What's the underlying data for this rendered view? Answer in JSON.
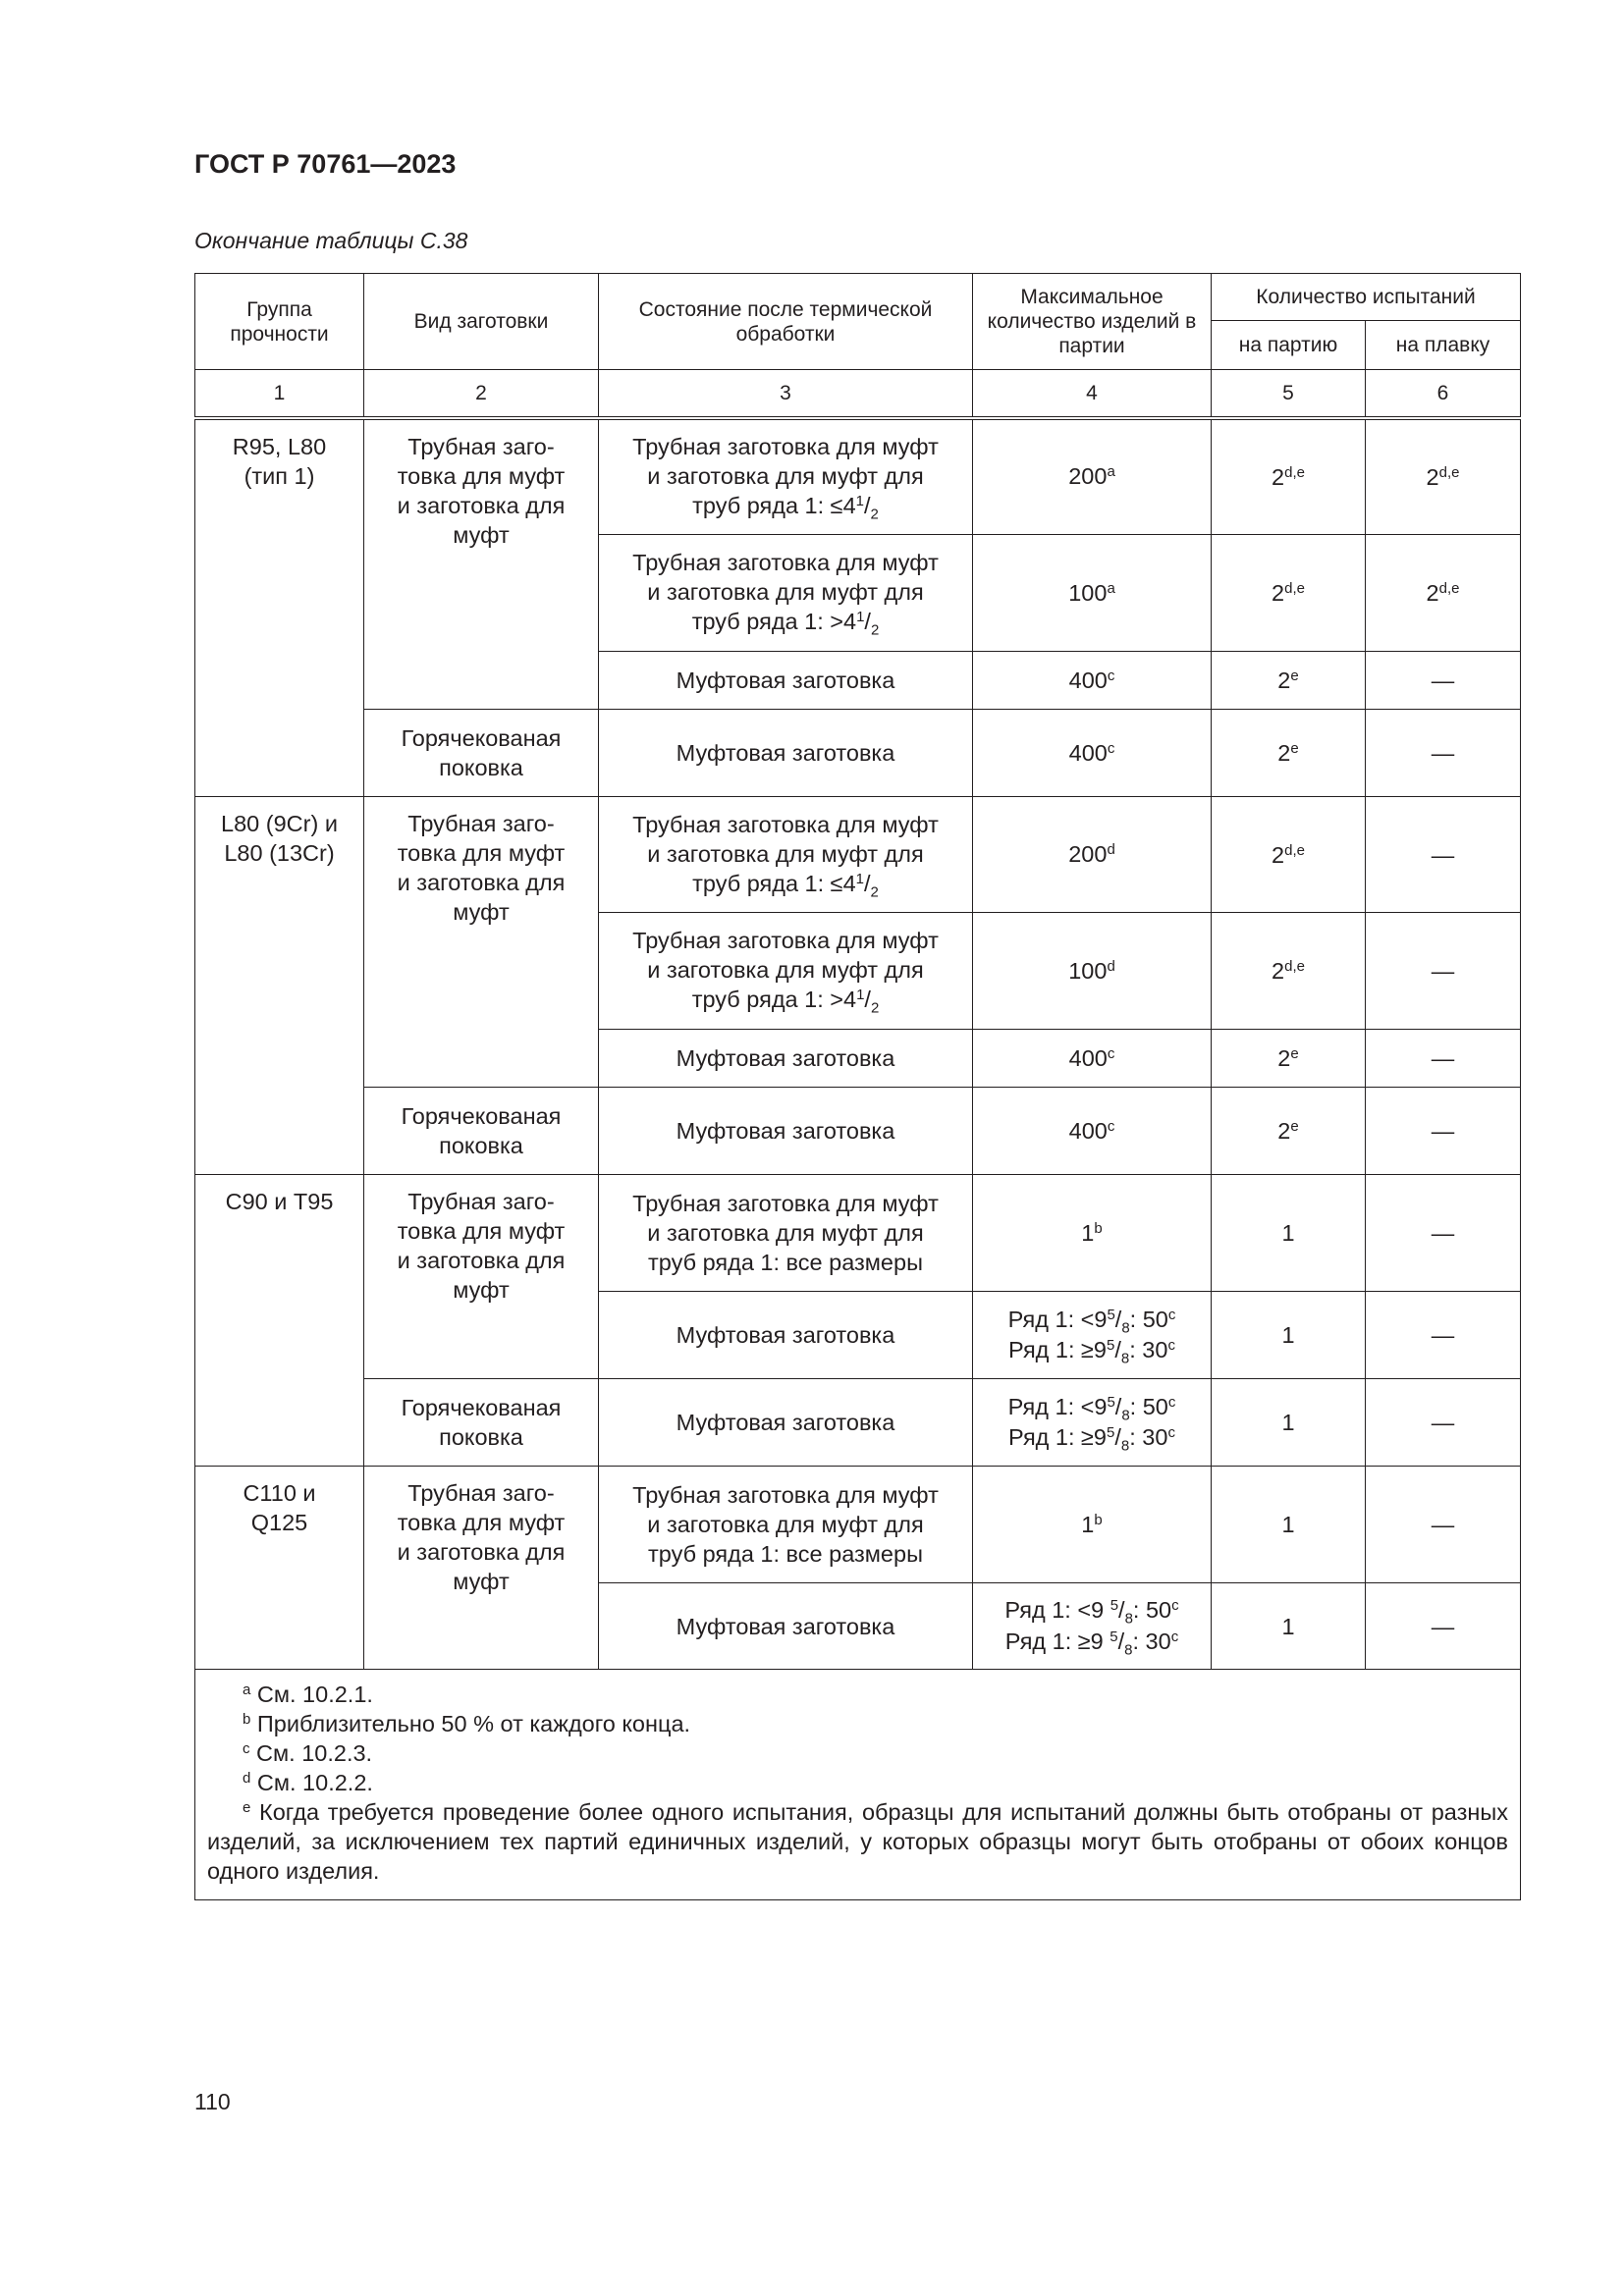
{
  "header": {
    "doc_title": "ГОСТ Р 70761—2023",
    "caption": "Окончание таблицы С.38",
    "page_number": "110"
  },
  "table": {
    "headers": {
      "group": "Группа прочности",
      "blank": "Вид заготовки",
      "condition": "Состояние после термической обработки",
      "max_qty": "Максимальное количество изделий в партии",
      "tests": "Количество испытаний",
      "per_lot": "на партию",
      "per_heat": "на плавку"
    },
    "column_numbers": [
      "1",
      "2",
      "3",
      "4",
      "5",
      "6"
    ],
    "groups": [
      {
        "group": [
          [
            {
              "t": "R95, L80"
            },
            {
              "br": 1
            },
            {
              "t": "(тип 1)"
            }
          ]
        ],
        "blanks": [
          {
            "label": [
              {
                "t": "Трубная заго-"
              },
              {
                "br": 1
              },
              {
                "t": "товка для муфт"
              },
              {
                "br": 1
              },
              {
                "t": "и заготовка для"
              },
              {
                "br": 1
              },
              {
                "t": "муфт"
              }
            ],
            "rows": [
              [
                [
                  {
                    "t": "Трубная заготовка для муфт"
                  },
                  {
                    "br": 1
                  },
                  {
                    "t": "и заготовка для муфт для"
                  },
                  {
                    "br": 1
                  },
                  {
                    "t": "труб ряда 1: ≤4"
                  },
                  {
                    "sup": "1"
                  },
                  {
                    "t": "/"
                  },
                  {
                    "sub": "2"
                  }
                ],
                [
                  {
                    "t": "200"
                  },
                  {
                    "sup": "a"
                  }
                ],
                [
                  {
                    "t": "2"
                  },
                  {
                    "sup": "d,e"
                  }
                ],
                [
                  {
                    "t": "2"
                  },
                  {
                    "sup": "d,e"
                  }
                ]
              ],
              [
                [
                  {
                    "t": "Трубная заготовка для муфт"
                  },
                  {
                    "br": 1
                  },
                  {
                    "t": "и заготовка для муфт для"
                  },
                  {
                    "br": 1
                  },
                  {
                    "t": "труб ряда 1: >4"
                  },
                  {
                    "sup": "1"
                  },
                  {
                    "t": "/"
                  },
                  {
                    "sub": "2"
                  }
                ],
                [
                  {
                    "t": "100"
                  },
                  {
                    "sup": "a"
                  }
                ],
                [
                  {
                    "t": "2"
                  },
                  {
                    "sup": "d,e"
                  }
                ],
                [
                  {
                    "t": "2"
                  },
                  {
                    "sup": "d,e"
                  }
                ]
              ],
              [
                [
                  {
                    "t": "Муфтовая заготовка"
                  }
                ],
                [
                  {
                    "t": "400"
                  },
                  {
                    "sup": "c"
                  }
                ],
                [
                  {
                    "t": "2"
                  },
                  {
                    "sup": "e"
                  }
                ],
                [
                  {
                    "t": "—"
                  }
                ]
              ]
            ]
          },
          {
            "label": [
              {
                "t": "Горячекованая"
              },
              {
                "br": 1
              },
              {
                "t": "поковка"
              }
            ],
            "rows": [
              [
                [
                  {
                    "t": "Муфтовая заготовка"
                  }
                ],
                [
                  {
                    "t": "400"
                  },
                  {
                    "sup": "c"
                  }
                ],
                [
                  {
                    "t": "2"
                  },
                  {
                    "sup": "e"
                  }
                ],
                [
                  {
                    "t": "—"
                  }
                ]
              ]
            ]
          }
        ]
      },
      {
        "group": [
          [
            {
              "t": "L80 (9Cr) и"
            },
            {
              "br": 1
            },
            {
              "t": "L80 (13Cr)"
            }
          ]
        ],
        "blanks": [
          {
            "label": [
              {
                "t": "Трубная заго-"
              },
              {
                "br": 1
              },
              {
                "t": "товка для муфт"
              },
              {
                "br": 1
              },
              {
                "t": "и заготовка для"
              },
              {
                "br": 1
              },
              {
                "t": "муфт"
              }
            ],
            "rows": [
              [
                [
                  {
                    "t": "Трубная заготовка для муфт"
                  },
                  {
                    "br": 1
                  },
                  {
                    "t": "и заготовка для муфт для"
                  },
                  {
                    "br": 1
                  },
                  {
                    "t": "труб ряда 1: ≤4"
                  },
                  {
                    "sup": "1"
                  },
                  {
                    "t": "/"
                  },
                  {
                    "sub": "2"
                  }
                ],
                [
                  {
                    "t": "200"
                  },
                  {
                    "sup": "d"
                  }
                ],
                [
                  {
                    "t": "2"
                  },
                  {
                    "sup": "d,e"
                  }
                ],
                [
                  {
                    "t": "—"
                  }
                ]
              ],
              [
                [
                  {
                    "t": "Трубная заготовка для муфт"
                  },
                  {
                    "br": 1
                  },
                  {
                    "t": "и заготовка для муфт для"
                  },
                  {
                    "br": 1
                  },
                  {
                    "t": "труб ряда 1: >4"
                  },
                  {
                    "sup": "1"
                  },
                  {
                    "t": "/"
                  },
                  {
                    "sub": "2"
                  }
                ],
                [
                  {
                    "t": "100"
                  },
                  {
                    "sup": "d"
                  }
                ],
                [
                  {
                    "t": "2"
                  },
                  {
                    "sup": "d,e"
                  }
                ],
                [
                  {
                    "t": "—"
                  }
                ]
              ],
              [
                [
                  {
                    "t": "Муфтовая заготовка"
                  }
                ],
                [
                  {
                    "t": "400"
                  },
                  {
                    "sup": "c"
                  }
                ],
                [
                  {
                    "t": "2"
                  },
                  {
                    "sup": "e"
                  }
                ],
                [
                  {
                    "t": "—"
                  }
                ]
              ]
            ]
          },
          {
            "label": [
              {
                "t": "Горячекованая"
              },
              {
                "br": 1
              },
              {
                "t": "поковка"
              }
            ],
            "rows": [
              [
                [
                  {
                    "t": "Муфтовая заготовка"
                  }
                ],
                [
                  {
                    "t": "400"
                  },
                  {
                    "sup": "c"
                  }
                ],
                [
                  {
                    "t": "2"
                  },
                  {
                    "sup": "e"
                  }
                ],
                [
                  {
                    "t": "—"
                  }
                ]
              ]
            ]
          }
        ]
      },
      {
        "group": [
          [
            {
              "t": "C90 и T95"
            }
          ]
        ],
        "blanks": [
          {
            "label": [
              {
                "t": "Трубная заго-"
              },
              {
                "br": 1
              },
              {
                "t": "товка для муфт"
              },
              {
                "br": 1
              },
              {
                "t": "и заготовка для"
              },
              {
                "br": 1
              },
              {
                "t": "муфт"
              }
            ],
            "rows": [
              [
                [
                  {
                    "t": "Трубная заготовка для муфт"
                  },
                  {
                    "br": 1
                  },
                  {
                    "t": "и заготовка для муфт для"
                  },
                  {
                    "br": 1
                  },
                  {
                    "t": "труб ряда 1: все размеры"
                  }
                ],
                [
                  {
                    "t": "1"
                  },
                  {
                    "sup": "b"
                  }
                ],
                [
                  {
                    "t": "1"
                  }
                ],
                [
                  {
                    "t": "—"
                  }
                ]
              ],
              [
                [
                  {
                    "t": "Муфтовая заготовка"
                  }
                ],
                [
                  {
                    "t": "Ряд 1: <9"
                  },
                  {
                    "sup": "5"
                  },
                  {
                    "t": "/"
                  },
                  {
                    "sub": "8"
                  },
                  {
                    "t": ": 50"
                  },
                  {
                    "sup": "c"
                  },
                  {
                    "br": 1
                  },
                  {
                    "t": "Ряд 1: ≥9"
                  },
                  {
                    "sup": "5"
                  },
                  {
                    "t": "/"
                  },
                  {
                    "sub": "8"
                  },
                  {
                    "t": ": 30"
                  },
                  {
                    "sup": "c"
                  }
                ],
                [
                  {
                    "t": "1"
                  }
                ],
                [
                  {
                    "t": "—"
                  }
                ]
              ]
            ]
          },
          {
            "label": [
              {
                "t": "Горячекованая"
              },
              {
                "br": 1
              },
              {
                "t": "поковка"
              }
            ],
            "rows": [
              [
                [
                  {
                    "t": "Муфтовая заготовка"
                  }
                ],
                [
                  {
                    "t": "Ряд 1: <9"
                  },
                  {
                    "sup": "5"
                  },
                  {
                    "t": "/"
                  },
                  {
                    "sub": "8"
                  },
                  {
                    "t": ": 50"
                  },
                  {
                    "sup": "c"
                  },
                  {
                    "br": 1
                  },
                  {
                    "t": "Ряд 1: ≥9"
                  },
                  {
                    "sup": "5"
                  },
                  {
                    "t": "/"
                  },
                  {
                    "sub": "8"
                  },
                  {
                    "t": ": 30"
                  },
                  {
                    "sup": "c"
                  }
                ],
                [
                  {
                    "t": "1"
                  }
                ],
                [
                  {
                    "t": "—"
                  }
                ]
              ]
            ]
          }
        ]
      },
      {
        "group": [
          [
            {
              "t": "C110 и"
            },
            {
              "br": 1
            },
            {
              "t": "Q125"
            }
          ]
        ],
        "blanks": [
          {
            "label": [
              {
                "t": "Трубная заго-"
              },
              {
                "br": 1
              },
              {
                "t": "товка для муфт"
              },
              {
                "br": 1
              },
              {
                "t": "и заготовка для"
              },
              {
                "br": 1
              },
              {
                "t": "муфт"
              }
            ],
            "rows": [
              [
                [
                  {
                    "t": "Трубная заготовка для муфт"
                  },
                  {
                    "br": 1
                  },
                  {
                    "t": "и заготовка для муфт для"
                  },
                  {
                    "br": 1
                  },
                  {
                    "t": "труб ряда 1: все размеры"
                  }
                ],
                [
                  {
                    "t": "1"
                  },
                  {
                    "sup": "b"
                  }
                ],
                [
                  {
                    "t": "1"
                  }
                ],
                [
                  {
                    "t": "—"
                  }
                ]
              ],
              [
                [
                  {
                    "t": "Муфтовая заготовка"
                  }
                ],
                [
                  {
                    "t": "Ряд 1: <9 "
                  },
                  {
                    "sup": "5"
                  },
                  {
                    "t": "/"
                  },
                  {
                    "sub": "8"
                  },
                  {
                    "t": ": 50"
                  },
                  {
                    "sup": "c"
                  },
                  {
                    "br": 1
                  },
                  {
                    "t": "Ряд 1: ≥9 "
                  },
                  {
                    "sup": "5"
                  },
                  {
                    "t": "/"
                  },
                  {
                    "sub": "8"
                  },
                  {
                    "t": ": 30"
                  },
                  {
                    "sup": "c"
                  }
                ],
                [
                  {
                    "t": "1"
                  }
                ],
                [
                  {
                    "t": "—"
                  }
                ]
              ]
            ]
          }
        ]
      }
    ],
    "footnotes": [
      {
        "mark": "a",
        "text": "См. 10.2.1."
      },
      {
        "mark": "b",
        "text": "Приблизительно 50 % от каждого конца."
      },
      {
        "mark": "c",
        "text": "См. 10.2.3."
      },
      {
        "mark": "d",
        "text": "См. 10.2.2."
      },
      {
        "mark": "e",
        "text": "Когда требуется проведение более одного испытания, образцы для испытаний должны быть отобраны от разных изделий, за исключением тех партий единичных изделий, у которых образцы могут быть отобраны от обоих концов одного изделия."
      }
    ]
  }
}
